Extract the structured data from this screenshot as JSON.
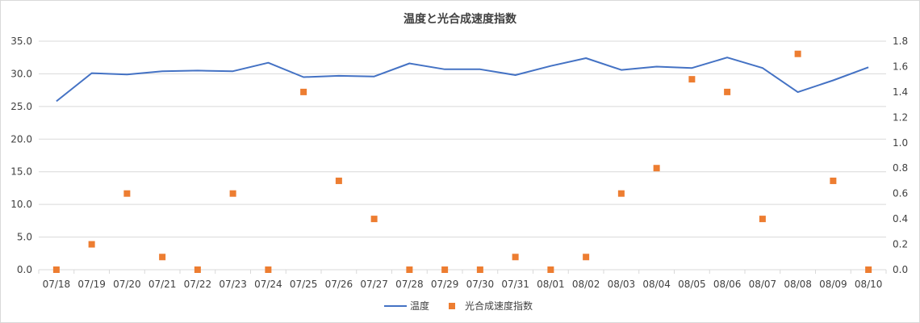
{
  "chart_data": {
    "type": "line",
    "title": "温度と光合成速度指数",
    "categories": [
      "07/18",
      "07/19",
      "07/20",
      "07/21",
      "07/22",
      "07/23",
      "07/24",
      "07/25",
      "07/26",
      "07/27",
      "07/28",
      "07/29",
      "07/30",
      "07/31",
      "08/01",
      "08/02",
      "08/03",
      "08/04",
      "08/05",
      "08/06",
      "08/07",
      "08/08",
      "08/09",
      "08/10"
    ],
    "series": [
      {
        "name": "温度",
        "type": "line",
        "axis": "left",
        "color": "#4472c4",
        "values": [
          25.8,
          30.1,
          29.9,
          30.4,
          30.5,
          30.4,
          31.7,
          29.5,
          29.7,
          29.6,
          31.6,
          30.7,
          30.7,
          29.8,
          31.2,
          32.4,
          30.6,
          31.1,
          30.9,
          32.5,
          30.9,
          27.2,
          29.0,
          31.0
        ]
      },
      {
        "name": "光合成速度指数",
        "type": "scatter",
        "axis": "right",
        "color": "#ed7d31",
        "values": [
          0.0,
          0.2,
          0.6,
          0.1,
          0.0,
          0.6,
          0.0,
          1.4,
          0.7,
          0.4,
          0.0,
          0.0,
          0.0,
          0.1,
          0.0,
          0.1,
          0.6,
          0.8,
          1.5,
          1.4,
          0.4,
          1.7,
          0.7,
          0.0
        ]
      }
    ],
    "y_left": {
      "ylim": [
        0,
        35
      ],
      "ticks": [
        "0.0",
        "5.0",
        "10.0",
        "15.0",
        "20.0",
        "25.0",
        "30.0",
        "35.0"
      ]
    },
    "y_right": {
      "ylim": [
        0,
        1.8
      ],
      "ticks": [
        "0.0",
        "0.2",
        "0.4",
        "0.6",
        "0.8",
        "1.0",
        "1.2",
        "1.4",
        "1.6",
        "1.8"
      ]
    },
    "grid": true,
    "legend": "bottom"
  }
}
